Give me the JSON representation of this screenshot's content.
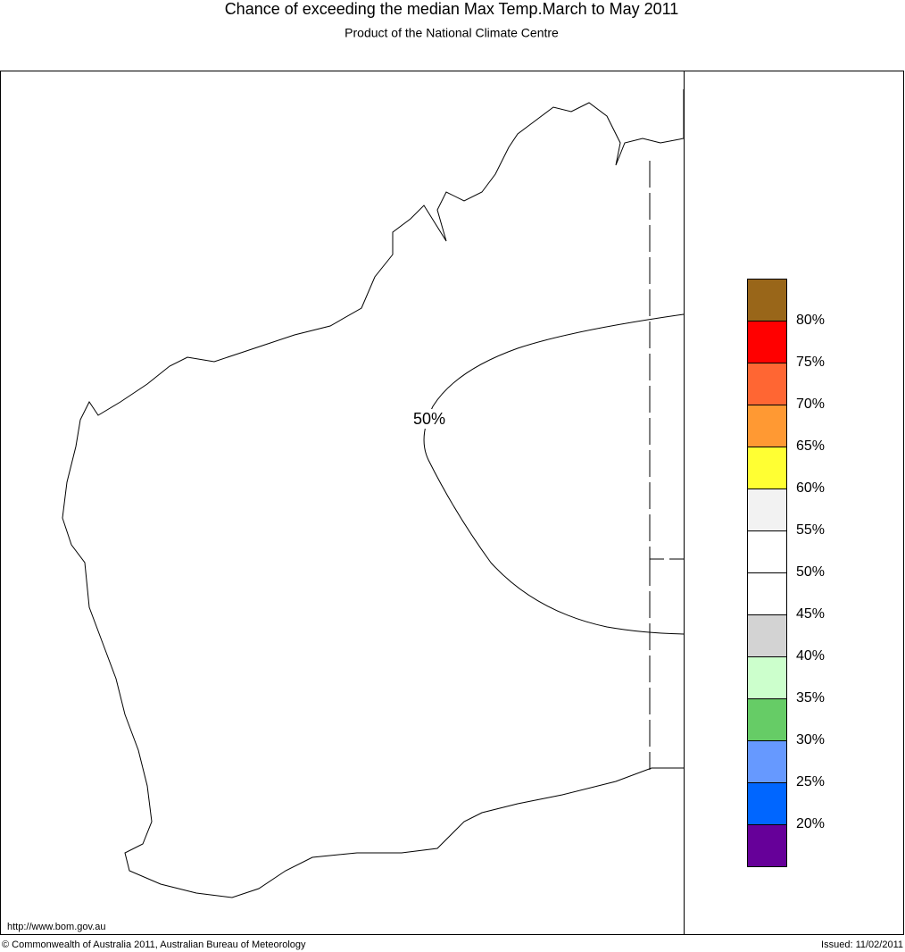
{
  "header": {
    "title": "Chance of exceeding the median Max Temp.March to May 2011",
    "subtitle": "Product of the National Climate Centre"
  },
  "map": {
    "contour_label": "50%"
  },
  "legend": {
    "colors": [
      "#996619",
      "#ff0000",
      "#ff6633",
      "#ff9933",
      "#ffff33",
      "#f2f2f2",
      "#ffffff",
      "#ffffff",
      "#d3d3d3",
      "#ccffcc",
      "#66cc66",
      "#6699ff",
      "#0066ff",
      "#660099"
    ],
    "labels": [
      "80%",
      "75%",
      "70%",
      "65%",
      "60%",
      "55%",
      "50%",
      "45%",
      "40%",
      "35%",
      "30%",
      "25%",
      "20%"
    ]
  },
  "footer": {
    "url": "http://www.bom.gov.au",
    "copyright": "© Commonwealth of Australia 2011, Australian Bureau of Meteorology",
    "issued": "Issued: 11/02/2011"
  }
}
